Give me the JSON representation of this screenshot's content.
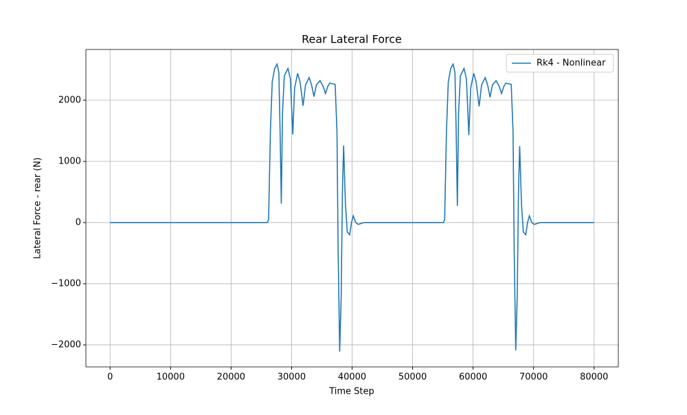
{
  "chart_data": {
    "type": "line",
    "title": "Rear Lateral Force",
    "xlabel": "Time Step",
    "ylabel": "Lateral Force - rear (N)",
    "x": [
      0,
      26000,
      26200,
      26500,
      26800,
      27200,
      27600,
      27900,
      28100,
      28300,
      28500,
      28800,
      29400,
      29800,
      30200,
      30500,
      31000,
      31400,
      31900,
      32300,
      32900,
      33300,
      33700,
      34100,
      34700,
      35200,
      35600,
      36000,
      36300,
      36800,
      37200,
      37500,
      37700,
      37950,
      38200,
      38400,
      38600,
      38900,
      39200,
      39600,
      39900,
      40200,
      40600,
      41000,
      42000,
      55100,
      55300,
      55600,
      55900,
      56300,
      56700,
      57000,
      57200,
      57400,
      57600,
      57900,
      58500,
      58900,
      59300,
      59600,
      60100,
      60500,
      61000,
      61400,
      62000,
      62400,
      62800,
      63200,
      63800,
      64300,
      64700,
      65100,
      65400,
      65900,
      66300,
      66600,
      66800,
      67050,
      67300,
      67500,
      67700,
      68000,
      68300,
      68700,
      69000,
      69300,
      69700,
      70100,
      71100,
      80000
    ],
    "series": [
      {
        "name": "Rk4 - Nonlinear",
        "color": "#1f77b4",
        "values": [
          0,
          0,
          50,
          1500,
          2300,
          2520,
          2590,
          2450,
          1500,
          310,
          1800,
          2400,
          2520,
          2350,
          1440,
          2200,
          2440,
          2300,
          1910,
          2250,
          2370,
          2250,
          2060,
          2250,
          2320,
          2230,
          2110,
          2230,
          2280,
          2270,
          2260,
          1500,
          -500,
          -2110,
          -1200,
          500,
          1260,
          300,
          -150,
          -200,
          0,
          110,
          0,
          -30,
          0,
          0,
          50,
          1500,
          2300,
          2520,
          2590,
          2450,
          1500,
          270,
          1800,
          2400,
          2520,
          2350,
          1430,
          2200,
          2440,
          2300,
          1900,
          2250,
          2370,
          2250,
          2050,
          2250,
          2320,
          2230,
          2110,
          2230,
          2280,
          2270,
          2260,
          1500,
          -500,
          -2090,
          -1200,
          500,
          1250,
          300,
          -150,
          -200,
          0,
          110,
          0,
          -30,
          0,
          0
        ]
      }
    ],
    "xlim": [
      -4000,
      84000
    ],
    "ylim": [
      -2360,
      2830
    ],
    "xticks": [
      0,
      10000,
      20000,
      30000,
      40000,
      50000,
      60000,
      70000,
      80000
    ],
    "yticks": [
      {
        "value": -2000,
        "label": "−2000"
      },
      {
        "value": -1000,
        "label": "−1000"
      },
      0,
      1000,
      2000
    ],
    "grid": true,
    "legend": "upper right"
  }
}
